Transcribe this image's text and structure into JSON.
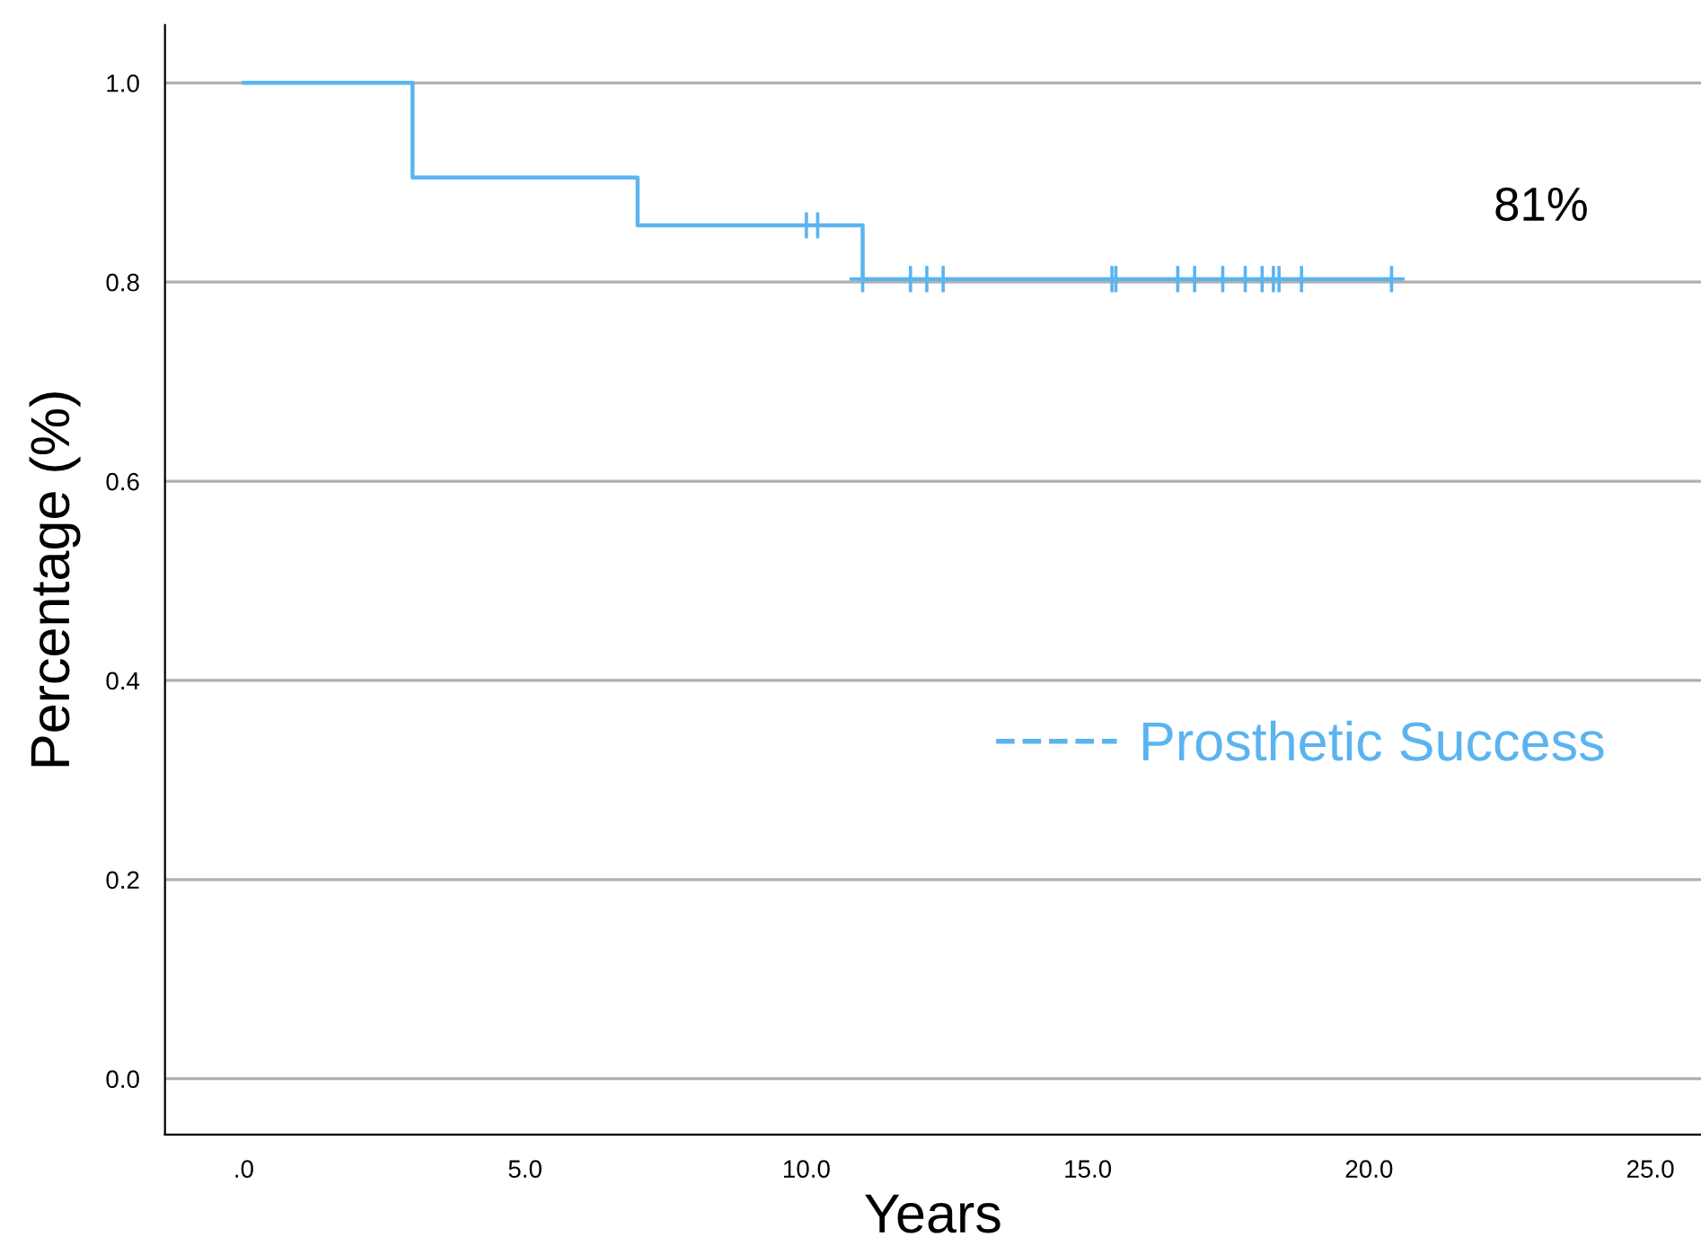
{
  "chart_data": {
    "type": "step",
    "xlabel": "Years",
    "ylabel": "Percentage (%)",
    "xlim": [
      -1.4,
      25.9
    ],
    "ylim": [
      -0.056,
      1.058
    ],
    "xticks": [
      {
        "value": 0,
        "label": ".0"
      },
      {
        "value": 5,
        "label": "5.0"
      },
      {
        "value": 10,
        "label": "10.0"
      },
      {
        "value": 15,
        "label": "15.0"
      },
      {
        "value": 20,
        "label": "20.0"
      },
      {
        "value": 25,
        "label": "25.0"
      }
    ],
    "yticks": [
      {
        "value": 0,
        "label": "0.0"
      },
      {
        "value": 0.2,
        "label": "0.2"
      },
      {
        "value": 0.4,
        "label": "0.4"
      },
      {
        "value": 0.6,
        "label": "0.6"
      },
      {
        "value": 0.8,
        "label": "0.8"
      },
      {
        "value": 1.0,
        "label": "1.0"
      }
    ],
    "grid": "y",
    "legend": "right",
    "series": [
      {
        "name": "Prosthetic Success",
        "color": "#5ab4f0",
        "x": [
          0,
          3,
          7,
          11,
          20.4
        ],
        "values": [
          1.0,
          0.905,
          0.857,
          0.803,
          0.803
        ]
      },
      {
        "type": "scatter",
        "marker": "cross",
        "color": "#5ab4f0",
        "x": [
          10.0,
          10.2,
          11.0,
          11.85,
          12.14,
          12.43,
          15.43,
          15.5,
          16.6,
          16.9,
          17.4,
          17.8,
          18.1,
          18.3,
          18.4,
          18.8,
          20.4
        ],
        "values": [
          0.857,
          0.857,
          0.803,
          0.803,
          0.803,
          0.803,
          0.803,
          0.803,
          0.803,
          0.803,
          0.803,
          0.803,
          0.803,
          0.803,
          0.803,
          0.803,
          0.803
        ]
      }
    ],
    "annotations": [
      "81%"
    ]
  }
}
